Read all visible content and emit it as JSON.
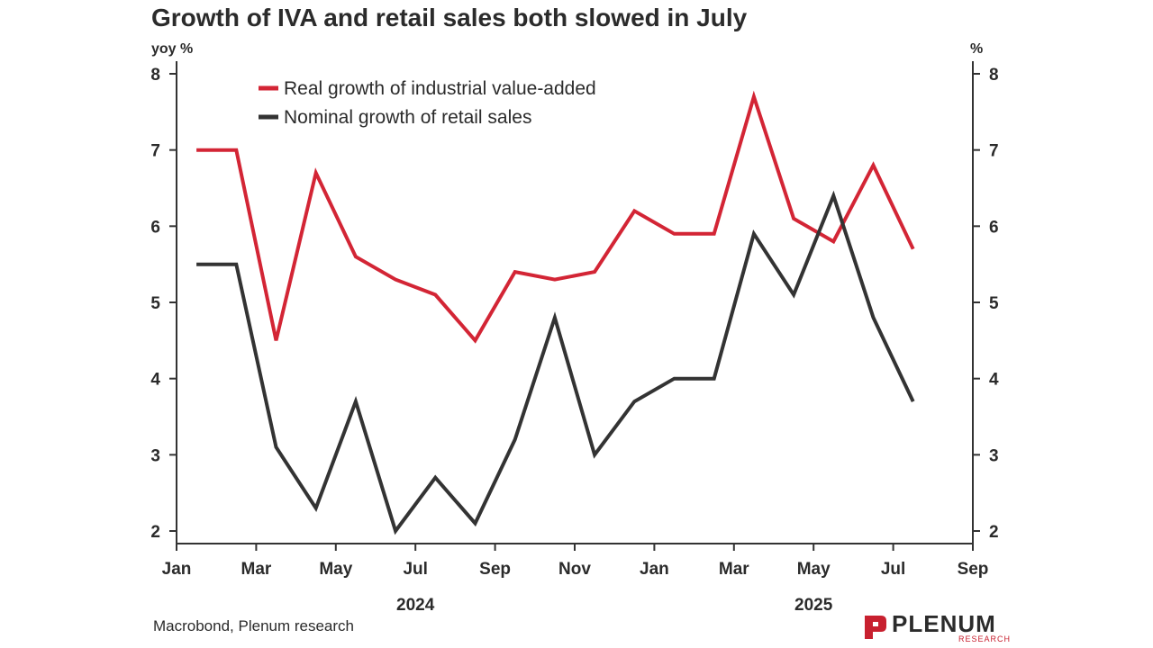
{
  "chart_data": {
    "type": "line",
    "title": "Growth of IVA and retail sales both slowed in July",
    "ylabel_left": "yoy %",
    "ylabel_right": "%",
    "ylim": [
      2,
      8
    ],
    "yticks": [
      2,
      3,
      4,
      5,
      6,
      7,
      8
    ],
    "x_ticks": [
      "Jan",
      "Mar",
      "May",
      "Jul",
      "Sep",
      "Nov",
      "Jan",
      "Mar",
      "May",
      "Jul",
      "Sep"
    ],
    "year_labels": [
      "2024",
      "2025"
    ],
    "x_dates": [
      "2024-01",
      "2024-02",
      "2024-03",
      "2024-04",
      "2024-05",
      "2024-06",
      "2024-07",
      "2024-08",
      "2024-09",
      "2024-10",
      "2024-11",
      "2024-12",
      "2025-01",
      "2025-02",
      "2025-03",
      "2025-04",
      "2025-05",
      "2025-06",
      "2025-07"
    ],
    "series": [
      {
        "name": "Real growth of industrial value-added",
        "color": "#d32535",
        "values": [
          7.0,
          7.0,
          4.5,
          6.7,
          5.6,
          5.3,
          5.1,
          4.5,
          5.4,
          5.3,
          5.4,
          6.2,
          5.9,
          5.9,
          7.7,
          6.1,
          5.8,
          6.8,
          5.7
        ]
      },
      {
        "name": "Nominal growth of retail sales",
        "color": "#333333",
        "values": [
          5.5,
          5.5,
          3.1,
          2.3,
          3.7,
          2.0,
          2.7,
          2.1,
          3.2,
          4.8,
          3.0,
          3.7,
          4.0,
          4.0,
          5.9,
          5.1,
          6.4,
          4.8,
          3.7
        ]
      }
    ],
    "legend_position": "top-left",
    "grid": false
  },
  "source": "Macrobond, Plenum research",
  "logo": {
    "name": "PLENUM",
    "sub": "RESEARCH",
    "color": "#c8202f",
    "icon": "plenum-logo-icon"
  }
}
